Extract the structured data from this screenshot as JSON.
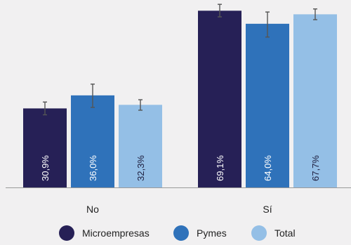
{
  "chart_data": {
    "type": "bar",
    "categories": [
      "No",
      "Sí"
    ],
    "series": [
      {
        "name": "Microempresas",
        "color": "#262056",
        "label_color": "#ffffff",
        "values": [
          30.9,
          69.1
        ],
        "errors": [
          [
            28.4,
            33.4
          ],
          [
            66.7,
            71.6
          ]
        ],
        "labels": [
          "30,9%",
          "69,1%"
        ]
      },
      {
        "name": "Pymes",
        "color": "#2f72ba",
        "label_color": "#ffffff",
        "values": [
          36.0,
          64.0
        ],
        "errors": [
          [
            31.3,
            40.4
          ],
          [
            58.8,
            68.6
          ]
        ],
        "labels": [
          "36,0%",
          "64,0%"
        ]
      },
      {
        "name": "Total",
        "color": "#94bfe6",
        "label_color": "#1d1d3d",
        "values": [
          32.3,
          67.7
        ],
        "errors": [
          [
            30.2,
            34.3
          ],
          [
            65.6,
            69.8
          ]
        ],
        "labels": [
          "32,3%",
          "67,7%"
        ]
      }
    ],
    "ylim": [
      0,
      70
    ],
    "grid": false,
    "error_bar_color": "#555555",
    "axis_color": "#9a9a9a",
    "legend_position": "bottom"
  }
}
